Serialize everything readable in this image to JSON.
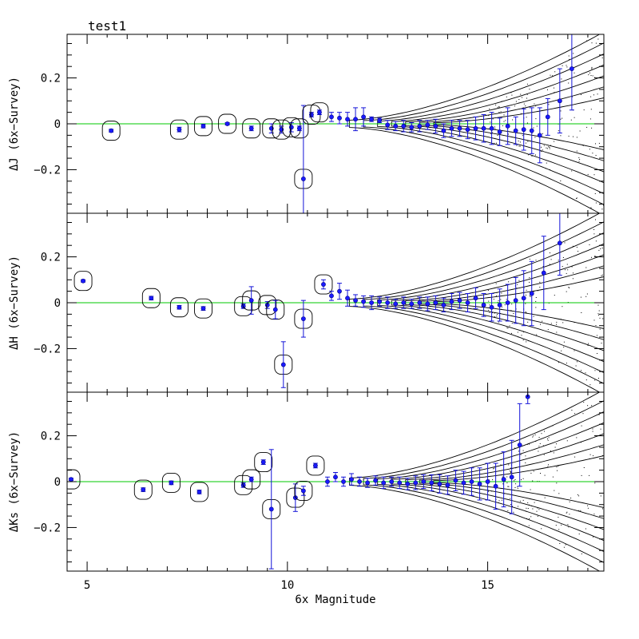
{
  "chart_data": [
    {
      "type": "scatter",
      "title": "test1",
      "ylabel": "ΔJ (6x−Survey)",
      "xlabel": "",
      "xlim": [
        4.5,
        17.9
      ],
      "ylim": [
        -0.39,
        0.39
      ],
      "x_ticks": [
        5,
        10,
        15
      ],
      "y_ticks": [
        -0.2,
        0,
        0.2
      ],
      "y_tick_labels": [
        "−0.2",
        "0",
        "0.2"
      ],
      "reference_line": {
        "y": 0,
        "color": "#00c800"
      },
      "points": [
        {
          "x": 5.6,
          "y": -0.03,
          "err": 0.006
        },
        {
          "x": 7.3,
          "y": -0.025,
          "err": 0.01
        },
        {
          "x": 7.9,
          "y": -0.01,
          "err": 0.008
        },
        {
          "x": 8.5,
          "y": 0.0,
          "err": 0.005
        },
        {
          "x": 9.1,
          "y": -0.02,
          "err": 0.01
        },
        {
          "x": 9.6,
          "y": -0.02,
          "err": 0.02
        },
        {
          "x": 9.85,
          "y": -0.025,
          "err": 0.015
        },
        {
          "x": 10.1,
          "y": -0.015,
          "err": 0.02
        },
        {
          "x": 10.3,
          "y": -0.02,
          "err": 0.01
        },
        {
          "x": 10.4,
          "y": -0.24,
          "err": 0.32
        },
        {
          "x": 10.6,
          "y": 0.04,
          "err": 0.01
        },
        {
          "x": 10.8,
          "y": 0.05,
          "err": 0.01
        },
        {
          "x": 11.1,
          "y": 0.03,
          "err": 0.02
        },
        {
          "x": 11.3,
          "y": 0.025,
          "err": 0.025
        },
        {
          "x": 11.5,
          "y": 0.02,
          "err": 0.03
        },
        {
          "x": 11.7,
          "y": 0.02,
          "err": 0.05
        },
        {
          "x": 11.9,
          "y": 0.03,
          "err": 0.04
        },
        {
          "x": 12.1,
          "y": 0.02,
          "err": 0.01
        },
        {
          "x": 12.3,
          "y": 0.015,
          "err": 0.01
        },
        {
          "x": 12.5,
          "y": -0.005,
          "err": 0.02
        },
        {
          "x": 12.7,
          "y": -0.01,
          "err": 0.02
        },
        {
          "x": 12.9,
          "y": -0.01,
          "err": 0.025
        },
        {
          "x": 13.1,
          "y": -0.015,
          "err": 0.02
        },
        {
          "x": 13.3,
          "y": -0.01,
          "err": 0.025
        },
        {
          "x": 13.5,
          "y": -0.005,
          "err": 0.02
        },
        {
          "x": 13.7,
          "y": -0.01,
          "err": 0.03
        },
        {
          "x": 13.9,
          "y": -0.03,
          "err": 0.03
        },
        {
          "x": 14.1,
          "y": -0.02,
          "err": 0.035
        },
        {
          "x": 14.3,
          "y": -0.02,
          "err": 0.035
        },
        {
          "x": 14.5,
          "y": -0.025,
          "err": 0.04
        },
        {
          "x": 14.7,
          "y": -0.02,
          "err": 0.05
        },
        {
          "x": 14.9,
          "y": -0.02,
          "err": 0.06
        },
        {
          "x": 15.1,
          "y": -0.02,
          "err": 0.07
        },
        {
          "x": 15.3,
          "y": -0.035,
          "err": 0.06
        },
        {
          "x": 15.5,
          "y": -0.01,
          "err": 0.08
        },
        {
          "x": 15.7,
          "y": -0.03,
          "err": 0.06
        },
        {
          "x": 15.9,
          "y": -0.025,
          "err": 0.09
        },
        {
          "x": 16.1,
          "y": -0.03,
          "err": 0.1
        },
        {
          "x": 16.3,
          "y": -0.05,
          "err": 0.12
        },
        {
          "x": 16.5,
          "y": 0.03,
          "err": 0.08
        },
        {
          "x": 16.8,
          "y": 0.1,
          "err": 0.14
        },
        {
          "x": 17.1,
          "y": 0.24,
          "err": 0.18
        }
      ]
    },
    {
      "type": "scatter",
      "title": "",
      "ylabel": "ΔH (6x−Survey)",
      "xlabel": "",
      "xlim": [
        4.5,
        17.9
      ],
      "ylim": [
        -0.39,
        0.39
      ],
      "x_ticks": [
        5,
        10,
        15
      ],
      "y_ticks": [
        -0.2,
        0,
        0.2
      ],
      "y_tick_labels": [
        "−0.2",
        "0",
        "0.2"
      ],
      "reference_line": {
        "y": 0,
        "color": "#00c800"
      },
      "points": [
        {
          "x": 4.9,
          "y": 0.095,
          "err": 0.005
        },
        {
          "x": 6.6,
          "y": 0.02,
          "err": 0.008
        },
        {
          "x": 7.3,
          "y": -0.02,
          "err": 0.008
        },
        {
          "x": 7.9,
          "y": -0.025,
          "err": 0.008
        },
        {
          "x": 8.9,
          "y": -0.015,
          "err": 0.01
        },
        {
          "x": 9.1,
          "y": 0.01,
          "err": 0.06
        },
        {
          "x": 9.5,
          "y": -0.01,
          "err": 0.015
        },
        {
          "x": 9.7,
          "y": -0.03,
          "err": 0.04
        },
        {
          "x": 9.9,
          "y": -0.27,
          "err": 0.1
        },
        {
          "x": 10.4,
          "y": -0.07,
          "err": 0.08
        },
        {
          "x": 10.9,
          "y": 0.08,
          "err": 0.02
        },
        {
          "x": 11.1,
          "y": 0.03,
          "err": 0.02
        },
        {
          "x": 11.3,
          "y": 0.05,
          "err": 0.035
        },
        {
          "x": 11.5,
          "y": 0.02,
          "err": 0.035
        },
        {
          "x": 11.7,
          "y": 0.01,
          "err": 0.025
        },
        {
          "x": 11.9,
          "y": 0.005,
          "err": 0.025
        },
        {
          "x": 12.1,
          "y": 0.0,
          "err": 0.03
        },
        {
          "x": 12.3,
          "y": 0.005,
          "err": 0.02
        },
        {
          "x": 12.5,
          "y": 0.0,
          "err": 0.025
        },
        {
          "x": 12.7,
          "y": -0.005,
          "err": 0.02
        },
        {
          "x": 12.9,
          "y": 0.0,
          "err": 0.025
        },
        {
          "x": 13.1,
          "y": -0.005,
          "err": 0.02
        },
        {
          "x": 13.3,
          "y": 0.0,
          "err": 0.025
        },
        {
          "x": 13.5,
          "y": -0.005,
          "err": 0.03
        },
        {
          "x": 13.7,
          "y": 0.0,
          "err": 0.03
        },
        {
          "x": 13.9,
          "y": -0.01,
          "err": 0.03
        },
        {
          "x": 14.1,
          "y": 0.005,
          "err": 0.035
        },
        {
          "x": 14.3,
          "y": 0.01,
          "err": 0.035
        },
        {
          "x": 14.5,
          "y": 0.0,
          "err": 0.04
        },
        {
          "x": 14.7,
          "y": 0.02,
          "err": 0.045
        },
        {
          "x": 14.9,
          "y": -0.01,
          "err": 0.05
        },
        {
          "x": 15.1,
          "y": -0.02,
          "err": 0.06
        },
        {
          "x": 15.3,
          "y": -0.01,
          "err": 0.07
        },
        {
          "x": 15.5,
          "y": 0.0,
          "err": 0.08
        },
        {
          "x": 15.7,
          "y": 0.01,
          "err": 0.1
        },
        {
          "x": 15.9,
          "y": 0.02,
          "err": 0.12
        },
        {
          "x": 16.1,
          "y": 0.04,
          "err": 0.14
        },
        {
          "x": 16.4,
          "y": 0.13,
          "err": 0.16
        },
        {
          "x": 16.8,
          "y": 0.26,
          "err": 0.14
        }
      ]
    },
    {
      "type": "scatter",
      "title": "",
      "ylabel": "ΔKs (6x−Survey)",
      "xlabel": "6x Magnitude",
      "xlim": [
        4.5,
        17.9
      ],
      "ylim": [
        -0.39,
        0.39
      ],
      "x_ticks": [
        5,
        10,
        15
      ],
      "x_tick_labels": [
        "5",
        "10",
        "15"
      ],
      "y_ticks": [
        -0.2,
        0,
        0.2
      ],
      "y_tick_labels": [
        "−0.2",
        "0",
        "0.2"
      ],
      "reference_line": {
        "y": 0,
        "color": "#00c800"
      },
      "points": [
        {
          "x": 4.6,
          "y": 0.01,
          "err": 0.005
        },
        {
          "x": 6.4,
          "y": -0.035,
          "err": 0.008
        },
        {
          "x": 7.1,
          "y": -0.005,
          "err": 0.008
        },
        {
          "x": 7.8,
          "y": -0.045,
          "err": 0.008
        },
        {
          "x": 8.9,
          "y": -0.015,
          "err": 0.01
        },
        {
          "x": 9.1,
          "y": 0.01,
          "err": 0.01
        },
        {
          "x": 9.4,
          "y": 0.085,
          "err": 0.01
        },
        {
          "x": 9.6,
          "y": -0.12,
          "err": 0.26
        },
        {
          "x": 10.2,
          "y": -0.07,
          "err": 0.06
        },
        {
          "x": 10.4,
          "y": -0.04,
          "err": 0.02
        },
        {
          "x": 10.7,
          "y": 0.07,
          "err": 0.01
        },
        {
          "x": 11.0,
          "y": 0.0,
          "err": 0.02
        },
        {
          "x": 11.2,
          "y": 0.02,
          "err": 0.02
        },
        {
          "x": 11.4,
          "y": 0.0,
          "err": 0.02
        },
        {
          "x": 11.6,
          "y": 0.01,
          "err": 0.025
        },
        {
          "x": 11.8,
          "y": 0.0,
          "err": 0.02
        },
        {
          "x": 12.0,
          "y": -0.005,
          "err": 0.02
        },
        {
          "x": 12.2,
          "y": 0.005,
          "err": 0.02
        },
        {
          "x": 12.4,
          "y": -0.005,
          "err": 0.025
        },
        {
          "x": 12.6,
          "y": 0.0,
          "err": 0.02
        },
        {
          "x": 12.8,
          "y": -0.005,
          "err": 0.025
        },
        {
          "x": 13.0,
          "y": -0.01,
          "err": 0.025
        },
        {
          "x": 13.2,
          "y": -0.005,
          "err": 0.03
        },
        {
          "x": 13.4,
          "y": 0.0,
          "err": 0.03
        },
        {
          "x": 13.6,
          "y": -0.005,
          "err": 0.035
        },
        {
          "x": 13.8,
          "y": -0.01,
          "err": 0.04
        },
        {
          "x": 14.0,
          "y": -0.015,
          "err": 0.04
        },
        {
          "x": 14.2,
          "y": 0.005,
          "err": 0.045
        },
        {
          "x": 14.4,
          "y": -0.005,
          "err": 0.05
        },
        {
          "x": 14.6,
          "y": 0.0,
          "err": 0.06
        },
        {
          "x": 14.8,
          "y": -0.01,
          "err": 0.07
        },
        {
          "x": 15.0,
          "y": 0.0,
          "err": 0.08
        },
        {
          "x": 15.2,
          "y": -0.02,
          "err": 0.1
        },
        {
          "x": 15.4,
          "y": 0.01,
          "err": 0.12
        },
        {
          "x": 15.6,
          "y": 0.02,
          "err": 0.16
        },
        {
          "x": 15.8,
          "y": 0.16,
          "err": 0.18
        },
        {
          "x": 16.0,
          "y": 0.37,
          "err": 0.03
        }
      ]
    }
  ]
}
